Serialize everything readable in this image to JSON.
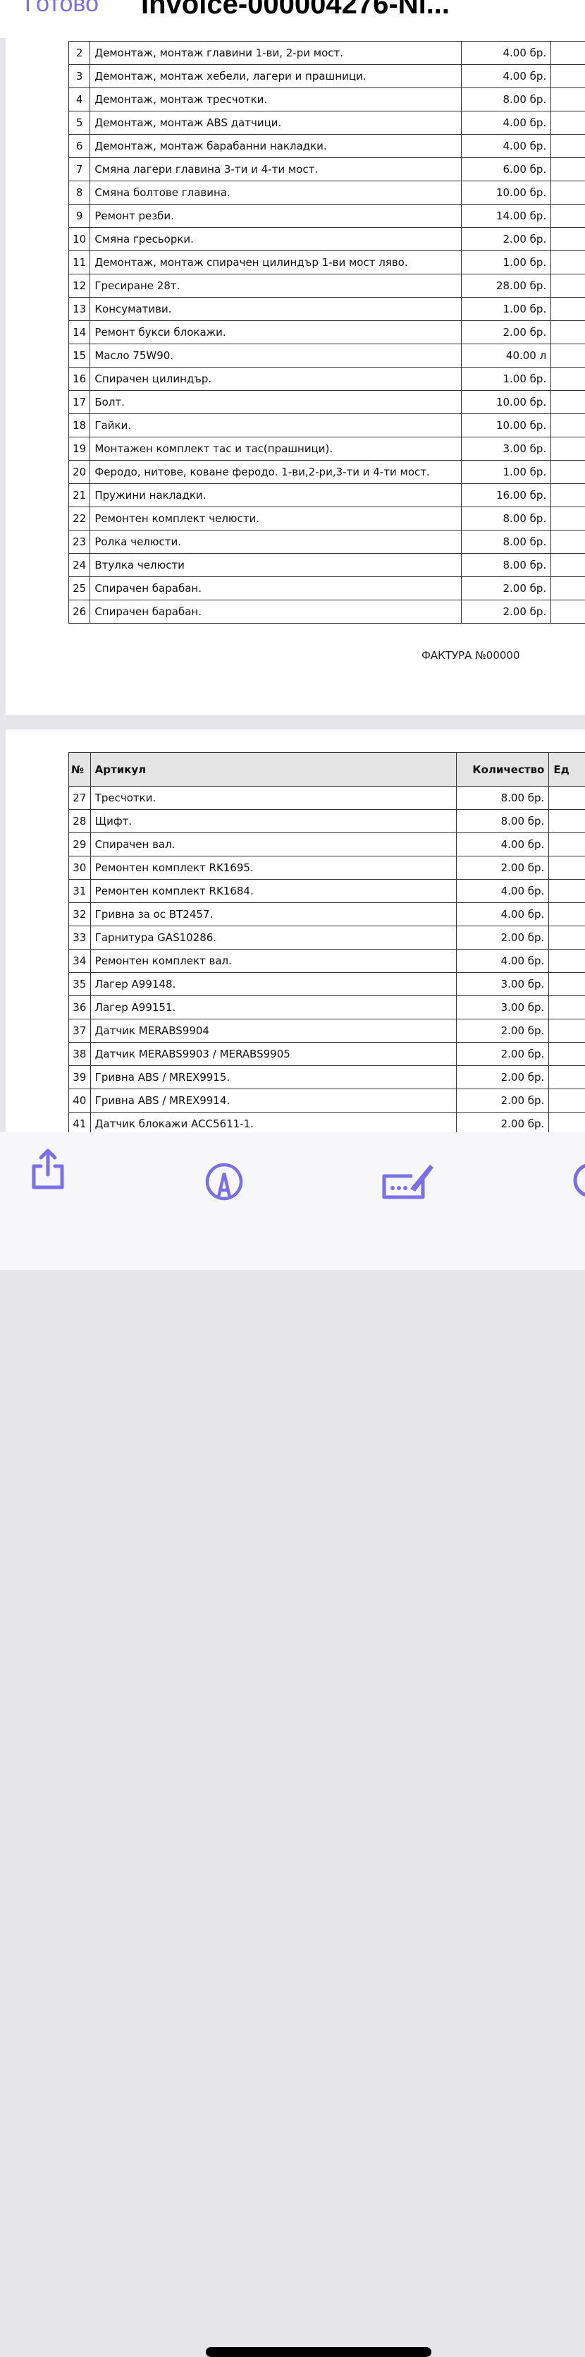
{
  "header": {
    "done_label": "Готово",
    "title": "Invoice-000004276-Nl..."
  },
  "page1": {
    "rows": [
      {
        "n": "2",
        "name": "Демонтаж, монтаж главини 1-ви, 2-ри мост.",
        "qty": "4.00 бр."
      },
      {
        "n": "3",
        "name": "Демонтаж, монтаж хебели, лагери и прашници.",
        "qty": "4.00 бр."
      },
      {
        "n": "4",
        "name": "Демонтаж, монтаж тресчотки.",
        "qty": "8.00 бр."
      },
      {
        "n": "5",
        "name": "Демонтаж, монтаж ABS датчици.",
        "qty": "4.00 бр."
      },
      {
        "n": "6",
        "name": "Демонтаж, монтаж барабанни накладки.",
        "qty": "4.00 бр."
      },
      {
        "n": "7",
        "name": "Смяна лагери главина 3-ти и 4-ти мост.",
        "qty": "6.00 бр."
      },
      {
        "n": "8",
        "name": "Смяна болтове главина.",
        "qty": "10.00 бр."
      },
      {
        "n": "9",
        "name": "Ремонт резби.",
        "qty": "14.00 бр."
      },
      {
        "n": "10",
        "name": "Смяна гресьорки.",
        "qty": "2.00 бр."
      },
      {
        "n": "11",
        "name": "Демонтаж, монтаж спирачен цилиндър 1-ви мост ляво.",
        "qty": "1.00 бр."
      },
      {
        "n": "12",
        "name": "Гресиране 28т.",
        "qty": "28.00 бр."
      },
      {
        "n": "13",
        "name": "Консумативи.",
        "qty": "1.00 бр."
      },
      {
        "n": "14",
        "name": "Ремонт букси блокажи.",
        "qty": "2.00 бр."
      },
      {
        "n": "15",
        "name": "Масло 75W90.",
        "qty": "40.00 л"
      },
      {
        "n": "16",
        "name": "Спирачен цилиндър.",
        "qty": "1.00 бр."
      },
      {
        "n": "17",
        "name": "Болт.",
        "qty": "10.00 бр."
      },
      {
        "n": "18",
        "name": "Гайки.",
        "qty": "10.00 бр."
      },
      {
        "n": "19",
        "name": "Монтажен комплект тас и тас(прашници).",
        "qty": "3.00 бр."
      },
      {
        "n": "20",
        "name": "Феродо, нитове, коване феродо. 1-ви,2-ри,3-ти и 4-ти мост.",
        "qty": "1.00 бр."
      },
      {
        "n": "21",
        "name": "Пружини накладки.",
        "qty": "16.00 бр."
      },
      {
        "n": "22",
        "name": "Ремонтен комплект челюсти.",
        "qty": "8.00 бр."
      },
      {
        "n": "23",
        "name": "Ролка челюсти.",
        "qty": "8.00 бр."
      },
      {
        "n": "24",
        "name": "Втулка челюсти",
        "qty": "8.00 бр."
      },
      {
        "n": "25",
        "name": "Спирачен барабан.",
        "qty": "2.00 бр."
      },
      {
        "n": "26",
        "name": "Спирачен барабан.",
        "qty": "2.00 бр."
      }
    ],
    "footer": "ФАКТУРА №00000"
  },
  "page2": {
    "headers": {
      "n": "№",
      "name": "Артикул",
      "qty": "Количество",
      "unit": "Ед"
    },
    "rows": [
      {
        "n": "27",
        "name": "Тресчотки.",
        "qty": "8.00 бр."
      },
      {
        "n": "28",
        "name": "Щифт.",
        "qty": "8.00 бр."
      },
      {
        "n": "29",
        "name": "Спирачен вал.",
        "qty": "4.00 бр."
      },
      {
        "n": "30",
        "name": "Ремонтен комплект RK1695.",
        "qty": "2.00 бр."
      },
      {
        "n": "31",
        "name": "Ремонтен комплект RK1684.",
        "qty": "4.00 бр."
      },
      {
        "n": "32",
        "name": "Гривна за ос BT2457.",
        "qty": "4.00 бр."
      },
      {
        "n": "33",
        "name": "Гарнитура GAS10286.",
        "qty": "2.00 бр."
      },
      {
        "n": "34",
        "name": "Ремонтен комплект вал.",
        "qty": "4.00 бр."
      },
      {
        "n": "35",
        "name": "Лагер A99148.",
        "qty": "3.00 бр."
      },
      {
        "n": "36",
        "name": "Лагер A99151.",
        "qty": "3.00 бр."
      },
      {
        "n": "37",
        "name": "Датчик MERABS9904",
        "qty": "2.00 бр."
      },
      {
        "n": "38",
        "name": "Датчик MERABS9903 / MERABS9905",
        "qty": "2.00 бр."
      },
      {
        "n": "39",
        "name": "Гривна ABS / MREX9915.",
        "qty": "2.00 бр."
      },
      {
        "n": "40",
        "name": "Гривна ABS / MREX9914.",
        "qty": "2.00 бр."
      },
      {
        "n": "41",
        "name": "Датчик блокажи ACC5611-1.",
        "qty": "2.00 бр."
      }
    ]
  },
  "toolbar": {
    "icons": [
      "share-icon",
      "markup-icon",
      "signature-icon",
      "search-icon"
    ],
    "accent": "#7a6fe8"
  }
}
